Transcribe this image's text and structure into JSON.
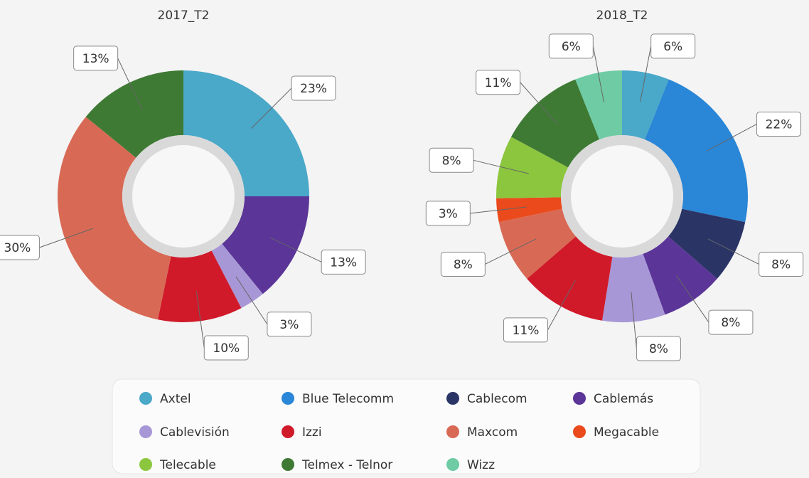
{
  "chart_data": [
    {
      "type": "pie",
      "title": "2017_T2",
      "categories": [
        "Axtel",
        "Cablemás",
        "Cablevisión",
        "Izzi",
        "Maxcom",
        "Telmex - Telnor"
      ],
      "values": [
        23,
        13,
        3,
        10,
        30,
        13
      ],
      "value_labels": [
        "23%",
        "13%",
        "3%",
        "10%",
        "30%",
        "13%"
      ]
    },
    {
      "type": "pie",
      "title": "2018_T2",
      "categories": [
        "Axtel",
        "Blue Telecomm",
        "Cablecom",
        "Cablemás",
        "Cablevisión",
        "Izzi",
        "Maxcom",
        "Megacable",
        "Telecable",
        "Telmex - Telnor",
        "Wizz"
      ],
      "values": [
        6,
        22,
        8,
        8,
        8,
        11,
        8,
        3,
        8,
        11,
        6
      ],
      "value_labels": [
        "6%",
        "22%",
        "8%",
        "8%",
        "8%",
        "11%",
        "8%",
        "3%",
        "8%",
        "11%",
        "6%"
      ]
    }
  ],
  "legend": {
    "items": [
      {
        "name": "Axtel",
        "color": "#4aa8c8"
      },
      {
        "name": "Blue Telecomm",
        "color": "#2a86d6"
      },
      {
        "name": "Cablecom",
        "color": "#2a3566"
      },
      {
        "name": "Cablemás",
        "color": "#5b3597"
      },
      {
        "name": "Cablevisión",
        "color": "#a897d6"
      },
      {
        "name": "Izzi",
        "color": "#d01a2a"
      },
      {
        "name": "Maxcom",
        "color": "#d86a55"
      },
      {
        "name": "Megacable",
        "color": "#ea4a1c"
      },
      {
        "name": "Telecable",
        "color": "#8cc63f"
      },
      {
        "name": "Telmex - Telnor",
        "color": "#3f7a35"
      },
      {
        "name": "Wizz",
        "color": "#6ecba3"
      }
    ]
  }
}
